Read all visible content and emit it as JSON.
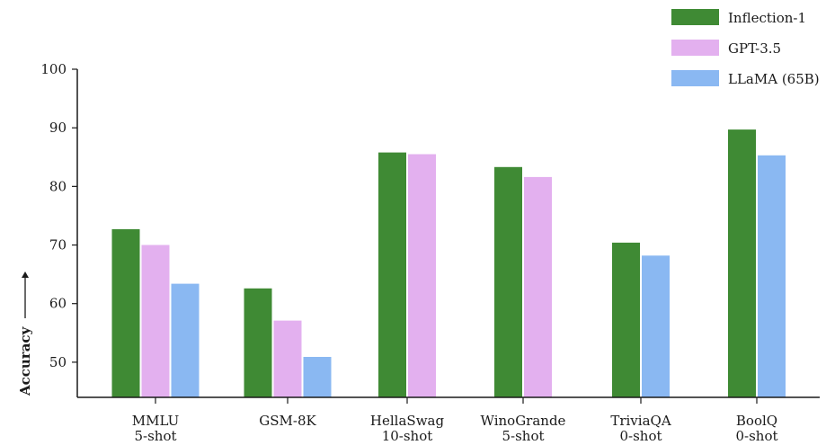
{
  "chart_data": {
    "type": "bar",
    "ylabel": "Accuracy",
    "ylim": [
      44,
      100
    ],
    "yticks": [
      50,
      60,
      70,
      80,
      90,
      100
    ],
    "grid": false,
    "legend_position": "top-right",
    "categories": [
      {
        "line1": "MMLU",
        "line2": "5-shot"
      },
      {
        "line1": "GSM-8K",
        "line2": ""
      },
      {
        "line1": "HellaSwag",
        "line2": "10-shot"
      },
      {
        "line1": "WinoGrande",
        "line2": "5-shot"
      },
      {
        "line1": "TriviaQA",
        "line2": "0-shot"
      },
      {
        "line1": "BoolQ",
        "line2": "0-shot"
      }
    ],
    "series": [
      {
        "name": "Inflection-1",
        "color": "#3f8a34",
        "values": [
          72.7,
          62.6,
          85.8,
          83.3,
          70.4,
          89.7
        ]
      },
      {
        "name": "GPT-3.5",
        "color": "#e3b0ef",
        "values": [
          70.0,
          57.1,
          85.5,
          81.6,
          null,
          null
        ]
      },
      {
        "name": "LLaMA (65B)",
        "color": "#8ab8f2",
        "values": [
          63.4,
          50.9,
          null,
          null,
          68.2,
          85.3
        ]
      }
    ]
  }
}
